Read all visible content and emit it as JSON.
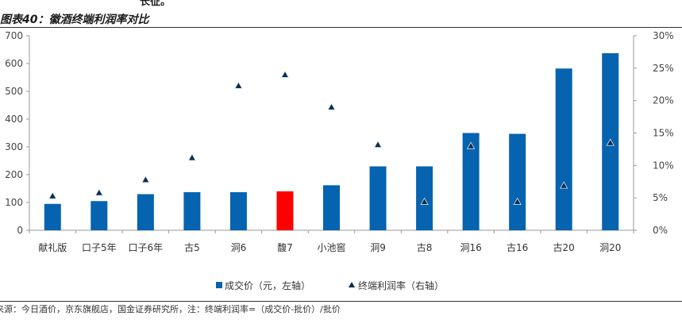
{
  "header": {
    "top_fragment": "长征。",
    "title": "图表40：徽酒终端利润率对比"
  },
  "source": "来源：今日酒价，京东旗舰店，国金证券研究所，注：终端利润率=（成交价-批价）/批价",
  "colors": {
    "bar": "#0563b0",
    "bar_highlight": "#fe0000",
    "marker": "#0a2d4f",
    "axis": "#9a9a9a"
  },
  "chart_data": {
    "type": "bar",
    "title": "图表40：徽酒终端利润率对比",
    "categories": [
      "献礼版",
      "口子5年",
      "口子6年",
      "古5",
      "洞6",
      "馥7",
      "小池窖",
      "洞9",
      "古8",
      "洞16",
      "古16",
      "古20",
      "洞20"
    ],
    "series": [
      {
        "name": "成交价（元，左轴）",
        "type": "bar",
        "axis": "left",
        "values": [
          95,
          105,
          130,
          137,
          137,
          140,
          162,
          230,
          230,
          350,
          347,
          582,
          637
        ],
        "highlight_index": 5
      },
      {
        "name": "终端利润率（右轴）",
        "type": "scatter",
        "axis": "right",
        "marker": "triangle",
        "values": [
          5.3,
          5.8,
          7.8,
          11.2,
          22.3,
          24.0,
          19.0,
          13.2,
          4.4,
          13.0,
          4.4,
          6.9,
          13.5
        ]
      }
    ],
    "y_left": {
      "ylim": [
        0,
        700
      ],
      "ticks": [
        "0",
        "100",
        "200",
        "300",
        "400",
        "500",
        "600",
        "700"
      ]
    },
    "y_right": {
      "ylim": [
        0,
        30
      ],
      "ticks": [
        "0%",
        "5%",
        "10%",
        "15%",
        "20%",
        "25%",
        "30%"
      ]
    },
    "legend": {
      "position": "bottom-center",
      "entries": [
        "成交价（元，左轴）",
        "终端利润率（右轴）"
      ]
    }
  }
}
